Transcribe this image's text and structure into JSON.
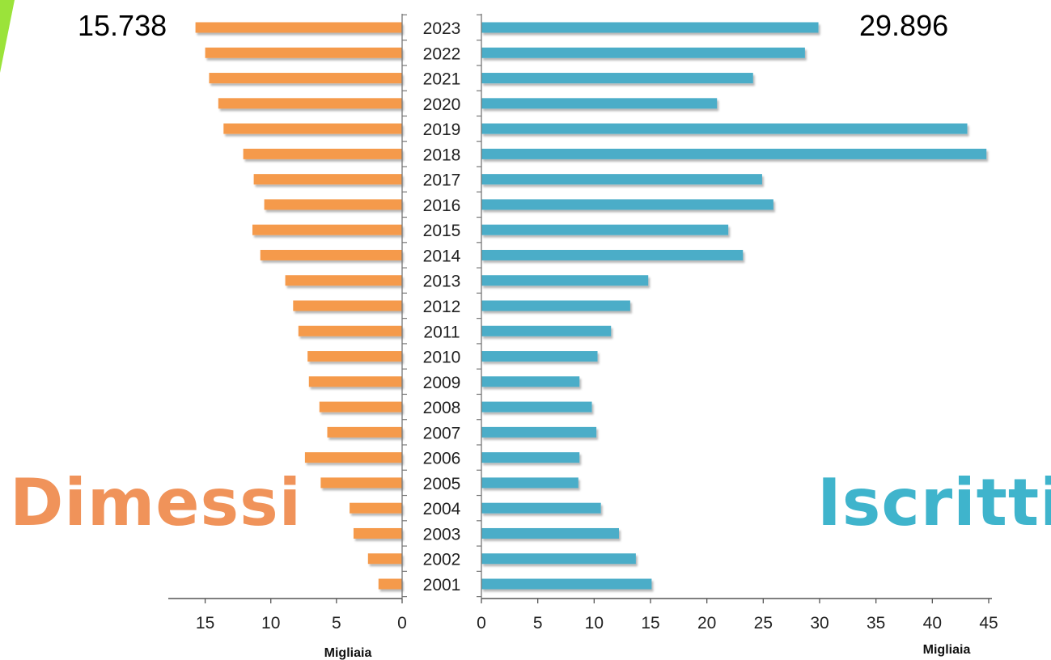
{
  "chart_data": {
    "type": "bar",
    "orientation": "horizontal-butterfly",
    "categories": [
      "2001",
      "2002",
      "2003",
      "2004",
      "2005",
      "2006",
      "2007",
      "2008",
      "2009",
      "2010",
      "2011",
      "2012",
      "2013",
      "2014",
      "2015",
      "2016",
      "2017",
      "2018",
      "2019",
      "2020",
      "2021",
      "2022",
      "2023"
    ],
    "series": [
      {
        "name": "Dimessi",
        "color": "#f59a4b",
        "values": [
          1.8,
          2.6,
          3.7,
          4.0,
          6.2,
          7.4,
          5.7,
          6.3,
          7.1,
          7.2,
          7.9,
          8.3,
          8.9,
          10.8,
          11.4,
          10.5,
          11.3,
          12.1,
          13.6,
          14.0,
          14.7,
          15.0,
          15.738
        ],
        "xlim": [
          0,
          17.5
        ],
        "xticks": [
          "15",
          "10",
          "5",
          "0"
        ],
        "xtick_values": [
          15,
          10,
          5,
          0
        ],
        "xlabel": "Migliaia",
        "callout": "15.738"
      },
      {
        "name": "Iscritti",
        "color": "#4badc8",
        "values": [
          15.1,
          13.7,
          12.2,
          10.6,
          8.6,
          8.7,
          10.2,
          9.8,
          8.7,
          10.3,
          11.5,
          13.2,
          14.8,
          23.2,
          21.9,
          25.9,
          24.9,
          44.8,
          43.1,
          20.9,
          24.1,
          28.7,
          29.896
        ],
        "xlim": [
          0,
          45
        ],
        "xticks": [
          "0",
          "5",
          "10",
          "15",
          "20",
          "25",
          "30",
          "35",
          "40",
          "45"
        ],
        "xtick_values": [
          0,
          5,
          10,
          15,
          20,
          25,
          30,
          35,
          40,
          45
        ],
        "xlabel": "Migliaia",
        "callout": "29.896"
      }
    ],
    "grid": false,
    "legend": "none"
  },
  "labels": {
    "left_big": "Dimessi",
    "right_big": "Iscritti",
    "left_callout": "15.738",
    "right_callout": "29.896"
  }
}
